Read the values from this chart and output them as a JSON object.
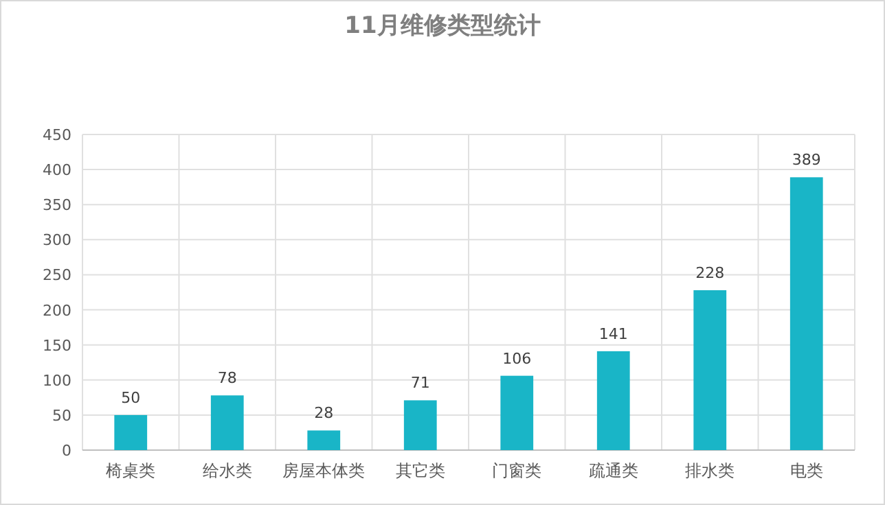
{
  "chart_data": {
    "type": "bar",
    "title": "11月维修类型统计",
    "categories": [
      "椅桌类",
      "给水类",
      "房屋本体类",
      "其它类",
      "门窗类",
      "疏通类",
      "排水类",
      "电类"
    ],
    "values": [
      50,
      78,
      28,
      71,
      106,
      141,
      228,
      389
    ],
    "color": "#19b5c7",
    "ylim": [
      0,
      450
    ],
    "yticks": [
      0,
      50,
      100,
      150,
      200,
      250,
      300,
      350,
      400,
      450
    ],
    "grid": true,
    "data_labels": true
  }
}
